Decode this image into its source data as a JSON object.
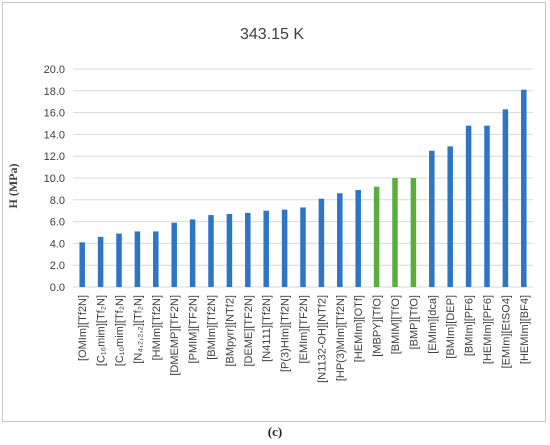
{
  "chart_data": {
    "type": "bar",
    "title": "343.15 K",
    "xlabel": "",
    "ylabel": "H (MPa)",
    "ylim": [
      0,
      20
    ],
    "yticks": [
      "0.0",
      "2.0",
      "4.0",
      "6.0",
      "8.0",
      "10.0",
      "12.0",
      "14.0",
      "16.0",
      "18.0",
      "20.0"
    ],
    "grid": true,
    "legend": "none",
    "categories": [
      "[OMIm][Tf2N]",
      "[C₁₆mim][Tf₂N]",
      "[C₁₀mim][Tf₂N]",
      "[N₄,₂,₂,₂][Tf₂N]",
      "[HMIm][Tf2N]",
      "[DMEMP][TF2N]",
      "[PMIM][TF2N]",
      "[BMIm][Tf2N]",
      "[BMpyrr][NTf2]",
      "[DEME][TF2N]",
      "[N4111][Tf2N]",
      "[P(3)HIm][Tf2N]",
      "[EMIm][TF2N]",
      "[N1132-OH][NTf2]",
      "[HP(3)MIm][Tf2N]",
      "[HEMIm][OTf]",
      "[MBPY][TfO]",
      "[BMIM][TfO]",
      "[BMP][TfO]",
      "[EMIm][dca]",
      "[BMIm][DEP]",
      "[BMIm][PF6]",
      "[HEMIm][PF6]",
      "[EMIm][EtSO4]",
      "[HEMIm][BF4]"
    ],
    "values": [
      4.1,
      4.6,
      4.9,
      5.1,
      5.1,
      5.9,
      6.2,
      6.6,
      6.7,
      6.8,
      7.0,
      7.1,
      7.3,
      8.1,
      8.6,
      8.9,
      9.2,
      10.0,
      10.0,
      12.5,
      12.9,
      14.8,
      14.8,
      16.3,
      18.1
    ],
    "colors": {
      "bar": "#2e75c6",
      "highlight": "#5aaf3c",
      "grid": "#d9d9d9",
      "text": "#404040"
    },
    "highlighted_categories": [
      "[MBPY][TfO]",
      "[BMIM][TfO]",
      "[BMP][TfO]"
    ]
  },
  "figure": {
    "caption": "(c)"
  }
}
